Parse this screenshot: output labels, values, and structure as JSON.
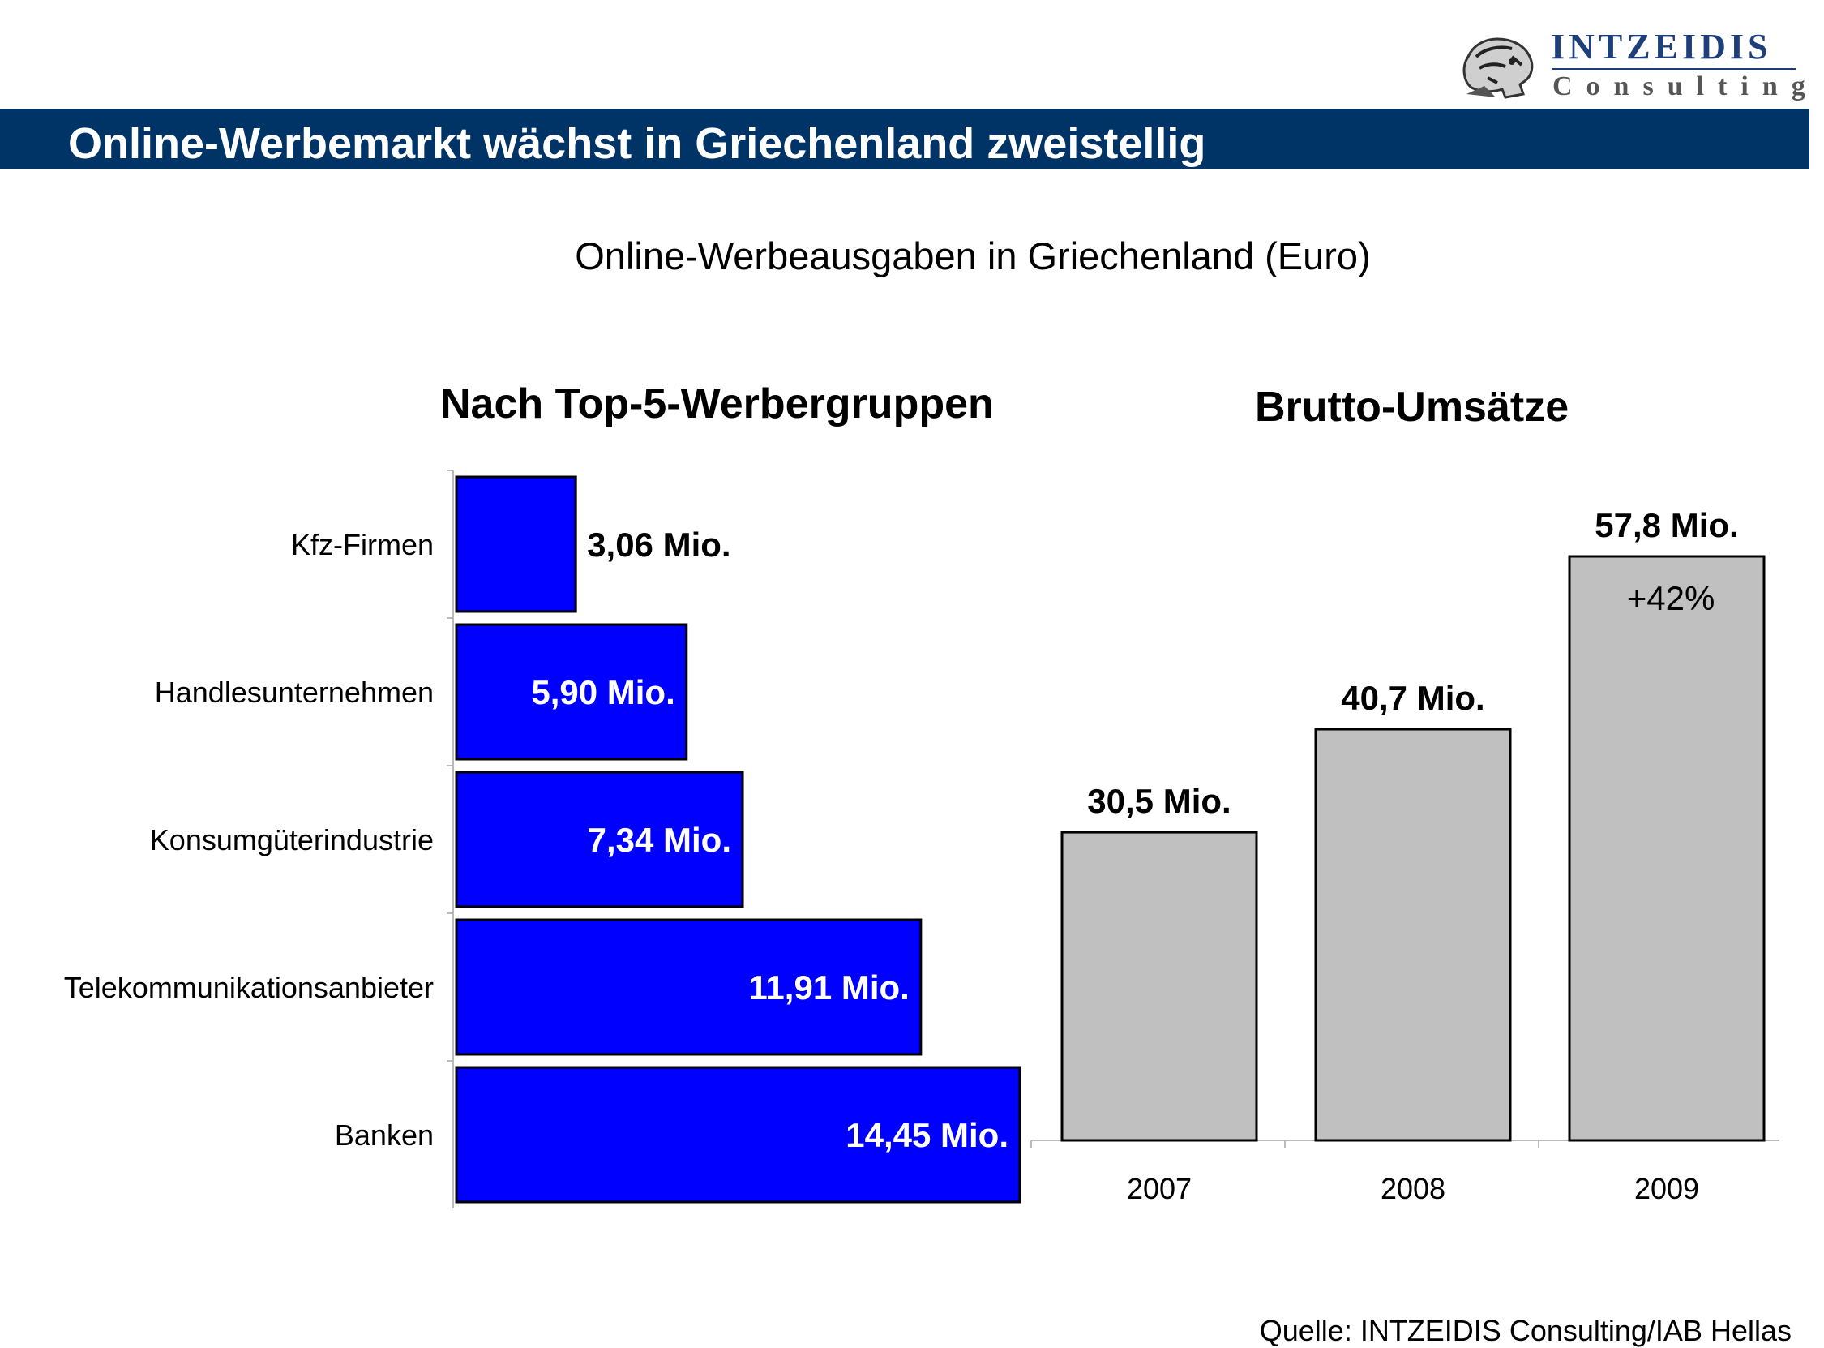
{
  "header": {
    "title": "Online-Werbemarkt wächst in Griechenland zweistellig",
    "logo_name": "INTZEIDIS",
    "logo_sub": "Consulting",
    "logo_icon": "bust-head-icon"
  },
  "subtitle": "Online-Werbeausgaben in Griechenland (Euro)",
  "source": "Quelle: INTZEIDIS Consulting/IAB Hellas",
  "colors": {
    "band": "#003366",
    "bar_blue": "#0000ff",
    "bar_grey": "#c0c0c0"
  },
  "chart_data": [
    {
      "type": "bar",
      "orientation": "horizontal",
      "title": "Nach Top-5-Werbergruppen",
      "categories": [
        "Kfz-Firmen",
        "Handlesunternehmen",
        "Konsumgüterindustrie",
        "Telekommunikationsanbieter",
        "Banken"
      ],
      "values": [
        3.06,
        5.9,
        7.34,
        11.91,
        14.45
      ],
      "data_labels": [
        "3,06 Mio.",
        "5,90 Mio.",
        "7,34 Mio.",
        "11,91 Mio.",
        "14,45 Mio."
      ],
      "xlim": [
        0,
        14.45
      ],
      "grid": false
    },
    {
      "type": "bar",
      "orientation": "vertical",
      "title": "Brutto-Umsätze",
      "categories": [
        "2007",
        "2008",
        "2009"
      ],
      "values": [
        30.5,
        40.7,
        57.8
      ],
      "data_labels": [
        "30,5 Mio.",
        "40,7 Mio.",
        "57,8 Mio."
      ],
      "annotation": "+42%",
      "ylim": [
        0,
        57.8
      ],
      "grid": false
    }
  ]
}
